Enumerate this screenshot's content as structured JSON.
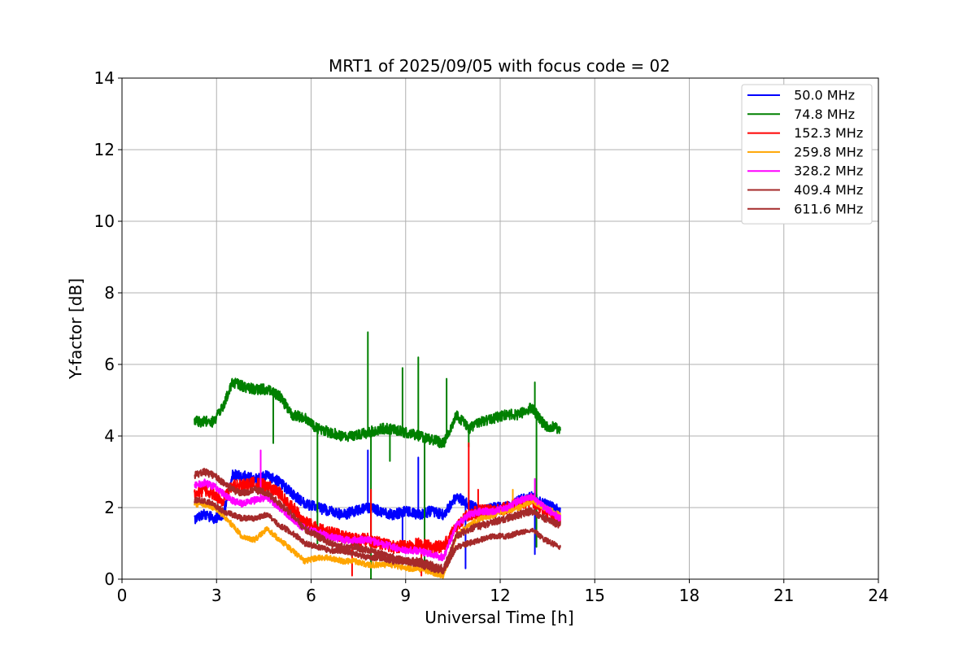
{
  "chart_data": {
    "type": "line",
    "title": "MRT1 of 2025/09/05 with focus code = 02",
    "xlabel": "Universal Time [h]",
    "ylabel": "Y-factor [dB]",
    "xlim": [
      0,
      24
    ],
    "ylim": [
      0,
      14
    ],
    "xticks": [
      0,
      3,
      6,
      9,
      12,
      15,
      18,
      21,
      24
    ],
    "yticks": [
      0,
      2,
      4,
      6,
      8,
      10,
      12,
      14
    ],
    "grid": true,
    "legend_position": "top-right",
    "series": [
      {
        "name": " 50.0 MHz",
        "color": "#0000ff",
        "x": [
          2.3,
          2.6,
          2.9,
          3.2,
          3.5,
          3.8,
          4.2,
          4.6,
          5.0,
          5.4,
          5.8,
          6.2,
          6.6,
          7.0,
          7.4,
          7.8,
          8.2,
          8.6,
          9.0,
          9.4,
          9.8,
          10.2,
          10.6,
          11.0,
          11.4,
          11.8,
          12.2,
          12.6,
          13.0,
          13.4,
          13.9
        ],
        "y": [
          1.7,
          1.8,
          1.7,
          1.8,
          2.9,
          2.9,
          2.8,
          2.9,
          2.7,
          2.4,
          2.1,
          2.0,
          1.9,
          1.8,
          1.9,
          2.0,
          1.9,
          1.8,
          1.9,
          1.8,
          1.9,
          1.8,
          2.3,
          2.1,
          1.9,
          2.0,
          2.0,
          2.2,
          2.3,
          2.1,
          1.9
        ],
        "noise": 0.15,
        "spikes": [
          [
            7.8,
            3.6
          ],
          [
            8.9,
            0.9
          ],
          [
            9.4,
            3.4
          ],
          [
            10.9,
            0.3
          ],
          [
            13.1,
            0.7
          ]
        ]
      },
      {
        "name": " 74.8 MHz",
        "color": "#008000",
        "x": [
          2.3,
          2.6,
          2.9,
          3.2,
          3.5,
          3.8,
          4.2,
          4.6,
          5.0,
          5.4,
          5.8,
          6.2,
          6.6,
          7.0,
          7.4,
          7.8,
          8.2,
          8.6,
          9.0,
          9.4,
          9.8,
          10.2,
          10.6,
          11.0,
          11.4,
          11.8,
          12.2,
          12.6,
          13.0,
          13.4,
          13.9
        ],
        "y": [
          4.4,
          4.4,
          4.4,
          4.8,
          5.5,
          5.4,
          5.3,
          5.3,
          5.1,
          4.6,
          4.5,
          4.2,
          4.1,
          4.0,
          4.0,
          4.1,
          4.2,
          4.2,
          4.1,
          4.0,
          3.9,
          3.8,
          4.6,
          4.2,
          4.4,
          4.5,
          4.6,
          4.6,
          4.8,
          4.3,
          4.2
        ],
        "noise": 0.15,
        "spikes": [
          [
            4.8,
            3.8
          ],
          [
            6.2,
            1.0
          ],
          [
            7.8,
            6.9
          ],
          [
            7.9,
            0.0
          ],
          [
            8.5,
            3.3
          ],
          [
            8.9,
            5.9
          ],
          [
            9.4,
            6.2
          ],
          [
            9.6,
            0.5
          ],
          [
            10.3,
            5.6
          ],
          [
            11.0,
            3.7
          ],
          [
            13.1,
            5.5
          ],
          [
            13.15,
            0.9
          ]
        ]
      },
      {
        "name": " 152.3 MHz",
        "color": "#ff0000",
        "x": [
          2.3,
          2.6,
          2.9,
          3.2,
          3.5,
          3.8,
          4.2,
          4.6,
          5.0,
          5.4,
          5.8,
          6.2,
          6.6,
          7.0,
          7.4,
          7.8,
          8.2,
          8.6,
          9.0,
          9.4,
          9.8,
          10.2,
          10.6,
          11.0,
          11.4,
          11.8,
          12.2,
          12.6,
          13.0,
          13.4,
          13.9
        ],
        "y": [
          2.4,
          2.5,
          2.4,
          2.2,
          2.6,
          2.6,
          2.7,
          2.6,
          2.4,
          2.0,
          1.6,
          1.4,
          1.3,
          1.2,
          1.1,
          1.1,
          1.0,
          0.9,
          0.9,
          1.0,
          0.9,
          0.9,
          1.5,
          1.8,
          1.9,
          1.9,
          2.0,
          2.1,
          2.2,
          1.9,
          1.6
        ],
        "noise": 0.18,
        "spikes": [
          [
            7.3,
            0.1
          ],
          [
            7.9,
            2.5
          ],
          [
            11.0,
            3.8
          ],
          [
            11.3,
            2.5
          ],
          [
            9.5,
            0.1
          ]
        ]
      },
      {
        "name": " 259.8 MHz",
        "color": "#ffa500",
        "x": [
          2.3,
          2.6,
          2.9,
          3.2,
          3.5,
          3.8,
          4.2,
          4.6,
          5.0,
          5.4,
          5.8,
          6.2,
          6.6,
          7.0,
          7.4,
          7.8,
          8.2,
          8.6,
          9.0,
          9.4,
          9.8,
          10.2,
          10.6,
          11.0,
          11.4,
          11.8,
          12.2,
          12.6,
          13.0,
          13.4,
          13.9
        ],
        "y": [
          2.1,
          2.1,
          2.0,
          1.8,
          1.5,
          1.2,
          1.1,
          1.4,
          1.1,
          0.8,
          0.5,
          0.6,
          0.6,
          0.5,
          0.5,
          0.4,
          0.4,
          0.4,
          0.3,
          0.3,
          0.2,
          0.1,
          1.2,
          1.5,
          1.7,
          1.8,
          1.9,
          2.0,
          2.2,
          2.0,
          1.8
        ],
        "noise": 0.08,
        "spikes": [
          [
            12.4,
            2.5
          ]
        ]
      },
      {
        "name": " 328.2 MHz",
        "color": "#ff00ff",
        "x": [
          2.3,
          2.6,
          2.9,
          3.2,
          3.5,
          3.8,
          4.2,
          4.6,
          5.0,
          5.4,
          5.8,
          6.2,
          6.6,
          7.0,
          7.4,
          7.8,
          8.2,
          8.6,
          9.0,
          9.4,
          9.8,
          10.2,
          10.6,
          11.0,
          11.4,
          11.8,
          12.2,
          12.6,
          13.0,
          13.4,
          13.9
        ],
        "y": [
          2.6,
          2.7,
          2.6,
          2.4,
          2.2,
          2.1,
          2.2,
          2.3,
          2.0,
          1.7,
          1.4,
          1.3,
          1.2,
          1.1,
          1.1,
          1.1,
          1.0,
          0.9,
          0.8,
          0.8,
          0.7,
          0.6,
          1.5,
          1.8,
          1.9,
          1.9,
          2.0,
          2.2,
          2.3,
          2.0,
          1.7
        ],
        "noise": 0.1,
        "spikes": [
          [
            4.4,
            3.6
          ],
          [
            13.1,
            2.8
          ]
        ]
      },
      {
        "name": " 409.4 MHz",
        "color": "#a52a2a",
        "x": [
          2.3,
          2.6,
          2.9,
          3.2,
          3.5,
          3.8,
          4.2,
          4.6,
          5.0,
          5.4,
          5.8,
          6.2,
          6.6,
          7.0,
          7.4,
          7.8,
          8.2,
          8.6,
          9.0,
          9.4,
          9.8,
          10.2,
          10.6,
          11.0,
          11.4,
          11.8,
          12.2,
          12.6,
          13.0,
          13.4,
          13.9
        ],
        "y": [
          2.9,
          3.0,
          2.9,
          2.7,
          2.5,
          2.4,
          2.5,
          2.4,
          2.1,
          1.8,
          1.4,
          1.2,
          1.0,
          0.9,
          0.9,
          0.8,
          0.7,
          0.6,
          0.5,
          0.5,
          0.4,
          0.3,
          1.2,
          1.4,
          1.5,
          1.6,
          1.7,
          1.8,
          1.9,
          1.7,
          1.5
        ],
        "noise": 0.1,
        "spikes": []
      },
      {
        "name": " 611.6 MHz",
        "color": "#a52a2a",
        "x": [
          2.3,
          2.6,
          2.9,
          3.2,
          3.5,
          3.8,
          4.2,
          4.6,
          5.0,
          5.4,
          5.8,
          6.2,
          6.6,
          7.0,
          7.4,
          7.8,
          8.2,
          8.6,
          9.0,
          9.4,
          9.8,
          10.2,
          10.6,
          11.0,
          11.4,
          11.8,
          12.2,
          12.6,
          13.0,
          13.4,
          13.9
        ],
        "y": [
          2.2,
          2.2,
          2.1,
          1.9,
          1.8,
          1.7,
          1.7,
          1.8,
          1.5,
          1.3,
          1.0,
          0.9,
          0.8,
          0.8,
          0.7,
          0.6,
          0.6,
          0.5,
          0.5,
          0.4,
          0.3,
          0.2,
          0.9,
          1.0,
          1.1,
          1.2,
          1.2,
          1.3,
          1.4,
          1.1,
          0.9
        ],
        "noise": 0.08,
        "spikes": []
      }
    ]
  }
}
